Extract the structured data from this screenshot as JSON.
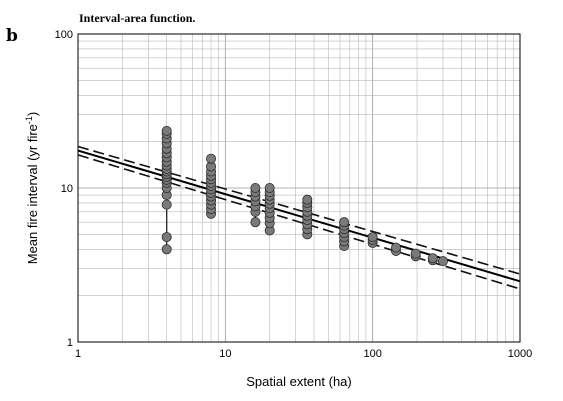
{
  "panel_letter": "b",
  "chart_data": {
    "type": "scatter",
    "title": "Interval-area function.",
    "xlabel": "Spatial extent (ha)",
    "ylabel_main": "Mean fire interval (yr fire",
    "ylabel_sup": "-1",
    "ylabel_close": ")",
    "x_scale": "log",
    "y_scale": "log",
    "xlim": [
      1,
      1000
    ],
    "ylim": [
      1,
      100
    ],
    "x_ticks": [
      {
        "v": 1,
        "label": "1"
      },
      {
        "v": 10,
        "label": "10"
      },
      {
        "v": 100,
        "label": "100"
      },
      {
        "v": 1000,
        "label": "1000"
      }
    ],
    "y_ticks": [
      {
        "v": 1,
        "label": "1"
      },
      {
        "v": 10,
        "label": "10"
      },
      {
        "v": 100,
        "label": "100"
      }
    ],
    "grid": true,
    "groups": [
      {
        "x": 4,
        "y": [
          4.0,
          4.8,
          7.8,
          9.0,
          10.0,
          10.8,
          11.3,
          11.8,
          12.3,
          12.8,
          13.3,
          14.0,
          14.8,
          15.8,
          16.8,
          18.0,
          19.5,
          21.0,
          22.5,
          23.5
        ]
      },
      {
        "x": 8,
        "y": [
          6.8,
          7.3,
          7.8,
          8.3,
          8.8,
          9.3,
          9.8,
          10.3,
          10.8,
          11.4,
          12.0,
          12.8,
          13.8,
          15.5
        ]
      },
      {
        "x": 16,
        "y": [
          6.0,
          7.0,
          7.6,
          8.2,
          8.8,
          9.4,
          10.0
        ]
      },
      {
        "x": 20,
        "y": [
          5.3,
          5.9,
          6.4,
          6.9,
          7.4,
          7.9,
          8.4,
          8.9,
          9.4,
          10.0
        ]
      },
      {
        "x": 36,
        "y": [
          5.0,
          5.4,
          5.8,
          6.2,
          6.6,
          7.0,
          7.5,
          8.0,
          8.4
        ]
      },
      {
        "x": 64,
        "y": [
          4.2,
          4.5,
          4.8,
          5.1,
          5.4,
          5.7,
          6.0
        ]
      },
      {
        "x": 100,
        "y": [
          4.4,
          4.6,
          4.8
        ]
      },
      {
        "x": 144,
        "y": [
          3.9,
          4.1
        ]
      },
      {
        "x": 196,
        "y": [
          3.6,
          3.75
        ]
      },
      {
        "x": 256,
        "y": [
          3.4,
          3.5
        ]
      },
      {
        "x": 300,
        "y": [
          3.35
        ]
      }
    ],
    "regression": {
      "a": 17.5,
      "b": -0.283
    },
    "confidence_band": {
      "upper_a": 18.6,
      "upper_b": -0.276,
      "lower_a": 16.4,
      "lower_b": -0.29
    }
  }
}
